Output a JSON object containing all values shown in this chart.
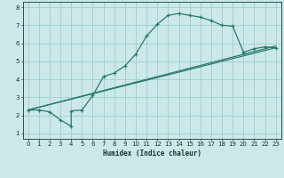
{
  "xlabel": "Humidex (Indice chaleur)",
  "ylabel": "",
  "xlim": [
    -0.5,
    23.5
  ],
  "ylim": [
    0.7,
    8.3
  ],
  "xticks": [
    0,
    1,
    2,
    3,
    4,
    5,
    6,
    7,
    8,
    9,
    10,
    11,
    12,
    13,
    14,
    15,
    16,
    17,
    18,
    19,
    20,
    21,
    22,
    23
  ],
  "yticks": [
    1,
    2,
    3,
    4,
    5,
    6,
    7,
    8
  ],
  "bg_color": "#cce8e8",
  "grid_color": "#9ecece",
  "line_color": "#2a7a70",
  "line1_x": [
    0,
    1,
    2,
    3,
    4,
    4,
    5,
    6,
    7,
    8,
    9,
    10,
    11,
    12,
    13,
    14,
    15,
    16,
    17,
    18,
    19,
    20,
    21,
    22,
    23
  ],
  "line1_y": [
    2.3,
    2.3,
    2.2,
    1.75,
    1.4,
    2.25,
    2.3,
    3.1,
    4.15,
    4.35,
    4.75,
    5.4,
    6.4,
    7.05,
    7.55,
    7.65,
    7.55,
    7.45,
    7.25,
    7.0,
    6.95,
    5.5,
    5.7,
    5.8,
    5.75
  ],
  "line2_x": [
    0,
    23
  ],
  "line2_y": [
    2.3,
    5.75
  ],
  "line3_x": [
    0,
    23
  ],
  "line3_y": [
    2.3,
    5.85
  ]
}
